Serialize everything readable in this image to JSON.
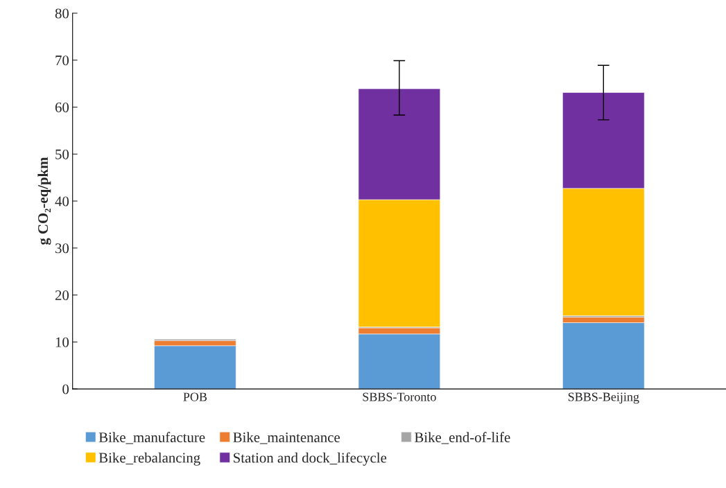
{
  "chart_data": {
    "type": "bar",
    "stacked": true,
    "ylabel": "g CO₂-eq/pkm",
    "categories": [
      "POB",
      "SBBS-Toronto",
      "SBBS-Beijing"
    ],
    "series": [
      {
        "name": "Bike_manufacture",
        "color": "#5b9bd5",
        "values": [
          9.2,
          11.7,
          14.1
        ]
      },
      {
        "name": "Bike_maintenance",
        "color": "#ed7d31",
        "values": [
          1.1,
          1.3,
          1.2
        ]
      },
      {
        "name": "Bike_end-of-life",
        "color": "#a5a5a5",
        "values": [
          0.3,
          0.2,
          0.3
        ]
      },
      {
        "name": "Bike_rebalancing",
        "color": "#ffc000",
        "values": [
          null,
          27.1,
          27.1
        ]
      },
      {
        "name": "Station and dock_lifecycle",
        "color": "#7030a0",
        "values": [
          null,
          23.6,
          20.4
        ],
        "errors": [
          null,
          [
            58.3,
            69.9
          ],
          [
            57.3,
            68.9
          ]
        ]
      }
    ],
    "ylim": [
      0,
      80
    ],
    "yticks": [
      0,
      10,
      20,
      30,
      40,
      50,
      60,
      70,
      80
    ],
    "grid": false,
    "legend": "bottom"
  }
}
